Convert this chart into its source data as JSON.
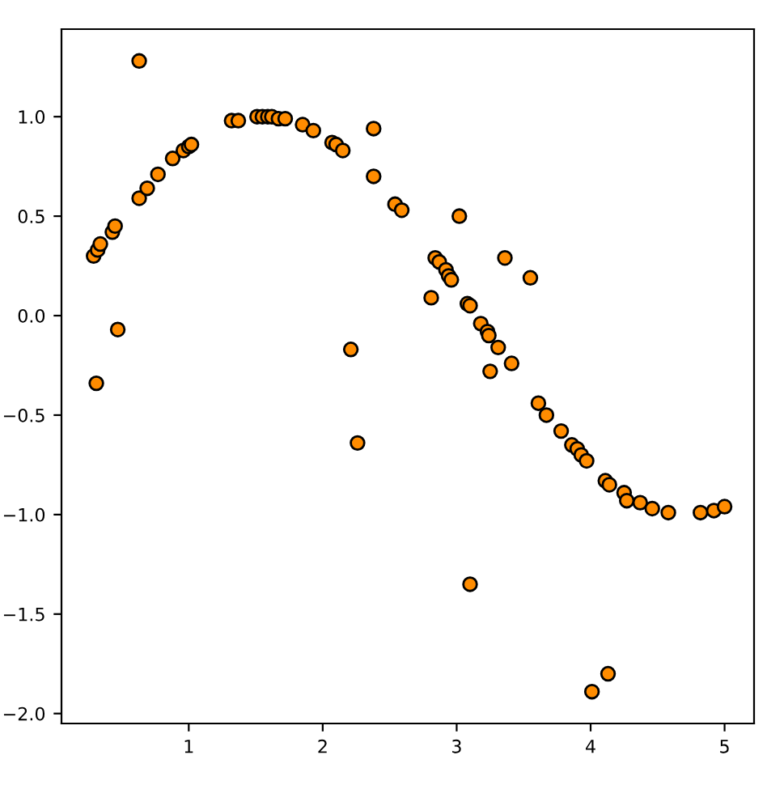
{
  "chart_data": {
    "type": "scatter",
    "marker": "circle",
    "grid": false,
    "legend": false,
    "x": [
      0.29,
      0.32,
      0.34,
      0.31,
      0.43,
      0.45,
      0.47,
      0.63,
      0.63,
      0.69,
      0.77,
      0.88,
      0.96,
      1.0,
      1.02,
      1.32,
      1.37,
      1.51,
      1.55,
      1.59,
      1.62,
      1.67,
      1.72,
      1.85,
      1.93,
      2.07,
      2.1,
      2.15,
      2.21,
      2.26,
      2.38,
      2.38,
      2.54,
      2.59,
      2.81,
      2.84,
      2.87,
      2.92,
      2.94,
      2.96,
      3.02,
      3.08,
      3.1,
      3.1,
      3.18,
      3.23,
      3.24,
      3.25,
      3.31,
      3.36,
      3.41,
      3.55,
      3.61,
      3.67,
      3.78,
      3.86,
      3.9,
      3.93,
      3.97,
      4.01,
      4.11,
      4.14,
      4.13,
      4.25,
      4.27,
      4.37,
      4.46,
      4.58,
      4.82,
      4.92,
      5.0
    ],
    "series": [
      {
        "color": "#ff8c00",
        "values": [
          0.3,
          0.33,
          0.36,
          -0.34,
          0.42,
          0.45,
          -0.07,
          1.28,
          0.59,
          0.64,
          0.71,
          0.79,
          0.83,
          0.85,
          0.86,
          0.98,
          0.98,
          1.0,
          1.0,
          1.0,
          1.0,
          0.99,
          0.99,
          0.96,
          0.93,
          0.87,
          0.86,
          0.83,
          -0.17,
          -0.64,
          0.94,
          0.7,
          0.56,
          0.53,
          0.09,
          0.29,
          0.27,
          0.23,
          0.2,
          0.18,
          0.5,
          0.06,
          0.05,
          -1.35,
          -0.04,
          -0.08,
          -0.1,
          -0.28,
          -0.16,
          0.29,
          -0.24,
          0.19,
          -0.44,
          -0.5,
          -0.58,
          -0.65,
          -0.67,
          -0.7,
          -0.73,
          -1.89,
          -0.83,
          -0.85,
          -1.8,
          -0.89,
          -0.93,
          -0.94,
          -0.97,
          -0.99,
          -0.99,
          -0.98,
          -0.96
        ]
      }
    ],
    "xlim": [
      0.05,
      5.22
    ],
    "ylim": [
      -2.05,
      1.44
    ],
    "xticks": [
      1,
      2,
      3,
      4,
      5
    ],
    "yticks": [
      {
        "value": -2,
        "label": "−2.0"
      },
      {
        "value": -1.5,
        "label": "−1.5"
      },
      {
        "value": -1,
        "label": "−1.0"
      },
      {
        "value": -0.5,
        "label": "−0.5"
      },
      {
        "value": 0,
        "label": "0.0"
      },
      {
        "value": 0.5,
        "label": "0.5"
      },
      {
        "value": 1,
        "label": "1.0"
      }
    ]
  }
}
